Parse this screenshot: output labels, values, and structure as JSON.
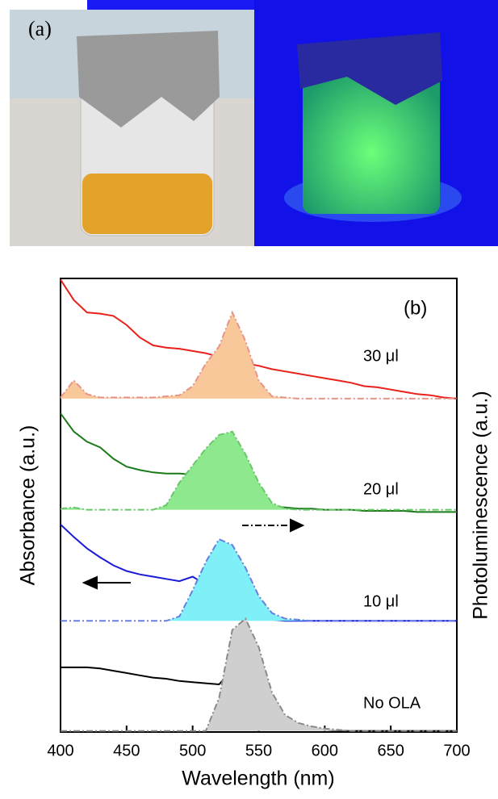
{
  "photo": {
    "label": "(a)"
  },
  "chart_data": {
    "type": "line",
    "panel_label": "(b)",
    "x_label": "Wavelength (nm)",
    "y_label": "Absorbance (a.u.)",
    "y2_label": "Photoluminescence (a.u.)",
    "xlim": [
      400,
      700
    ],
    "xticks": [
      400,
      450,
      500,
      550,
      600,
      650,
      700
    ],
    "ylim": [
      0,
      4
    ],
    "x": [
      400,
      410,
      420,
      430,
      440,
      450,
      460,
      470,
      480,
      490,
      500,
      510,
      520,
      530,
      540,
      550,
      560,
      570,
      580,
      590,
      600,
      610,
      620,
      630,
      640,
      650,
      660,
      670,
      680,
      690,
      700
    ],
    "annotations": [
      "30 μl",
      "20 μl",
      "10 μl",
      "No OLA"
    ],
    "series": [
      {
        "color": "#e8211a",
        "dashed": false,
        "values": [
          3.99,
          3.81,
          3.7,
          3.69,
          3.67,
          3.59,
          3.48,
          3.41,
          3.39,
          3.38,
          3.36,
          3.34,
          3.31,
          3.28,
          3.25,
          3.23,
          3.2,
          3.18,
          3.16,
          3.14,
          3.12,
          3.1,
          3.08,
          3.05,
          3.04,
          3.02,
          3.0,
          2.98,
          2.97,
          2.95,
          2.94
        ]
      },
      {
        "color": "#e8948a",
        "dashed": true,
        "fill": "#f9c89a",
        "values": [
          2.95,
          3.1,
          2.98,
          2.95,
          2.95,
          2.95,
          2.95,
          2.95,
          2.96,
          2.97,
          3.05,
          3.25,
          3.4,
          3.7,
          3.45,
          3.1,
          2.96,
          2.95,
          2.94,
          2.94,
          2.94,
          2.94,
          2.94,
          2.94,
          2.94,
          2.94,
          2.94,
          2.94,
          2.94,
          2.94,
          2.94
        ]
      },
      {
        "color": "#1a7a1a",
        "dashed": false,
        "values": [
          2.81,
          2.65,
          2.56,
          2.51,
          2.41,
          2.34,
          2.31,
          2.29,
          2.28,
          2.28,
          2.27,
          2.22,
          2.15,
          2.09,
          2.04,
          2.01,
          1.99,
          1.98,
          1.97,
          1.97,
          1.96,
          1.96,
          1.96,
          1.95,
          1.95,
          1.95,
          1.95,
          1.94,
          1.94,
          1.94,
          1.94
        ]
      },
      {
        "color": "#6ac66a",
        "dashed": true,
        "fill": "#8ee88e",
        "values": [
          1.97,
          1.98,
          1.96,
          1.96,
          1.96,
          1.96,
          1.96,
          1.96,
          2.0,
          2.2,
          2.35,
          2.5,
          2.62,
          2.65,
          2.45,
          2.2,
          2.02,
          1.97,
          1.96,
          1.96,
          1.96,
          1.96,
          1.96,
          1.96,
          1.96,
          1.96,
          1.96,
          1.96,
          1.96,
          1.96,
          1.96
        ]
      },
      {
        "color": "#1a1ad8",
        "dashed": false,
        "values": [
          1.83,
          1.72,
          1.62,
          1.54,
          1.47,
          1.42,
          1.39,
          1.37,
          1.35,
          1.33,
          1.37,
          1.3,
          1.2,
          1.12,
          1.05,
          1.0,
          0.99,
          0.98,
          0.98,
          0.98,
          0.98,
          0.98,
          0.98,
          0.98,
          0.98,
          0.98,
          0.98,
          0.98,
          0.98,
          0.98,
          0.98
        ]
      },
      {
        "color": "#6a7ee0",
        "dashed": true,
        "fill": "#7ff0f8",
        "values": [
          0.98,
          0.98,
          0.98,
          0.98,
          0.98,
          0.98,
          0.98,
          0.98,
          0.98,
          1.02,
          1.25,
          1.5,
          1.7,
          1.65,
          1.45,
          1.2,
          1.05,
          1.0,
          0.99,
          0.98,
          0.98,
          0.98,
          0.98,
          0.98,
          0.98,
          0.98,
          0.98,
          0.98,
          0.98,
          0.98,
          0.98
        ]
      },
      {
        "color": "#000000",
        "dashed": false,
        "values": [
          0.57,
          0.57,
          0.57,
          0.56,
          0.54,
          0.52,
          0.5,
          0.48,
          0.47,
          0.45,
          0.44,
          0.43,
          0.42,
          0.55,
          0.55,
          0.35,
          0.24,
          0.12,
          0.05,
          0.03,
          0.02,
          0.01,
          0.01,
          0.01,
          0.01,
          0.01,
          0.01,
          0.01,
          0.01,
          0.01,
          0.01
        ]
      },
      {
        "color": "#8a8a8a",
        "dashed": true,
        "fill": "#cfcfcf",
        "values": [
          0.01,
          0.01,
          0.01,
          0.01,
          0.01,
          0.01,
          0.01,
          0.01,
          0.01,
          0.01,
          0.01,
          0.01,
          0.3,
          0.9,
          1.0,
          0.75,
          0.35,
          0.15,
          0.08,
          0.05,
          0.03,
          0.02,
          0.01,
          0.01,
          0.01,
          0.01,
          0.01,
          0.01,
          0.01,
          0.01,
          0.01
        ]
      }
    ]
  }
}
